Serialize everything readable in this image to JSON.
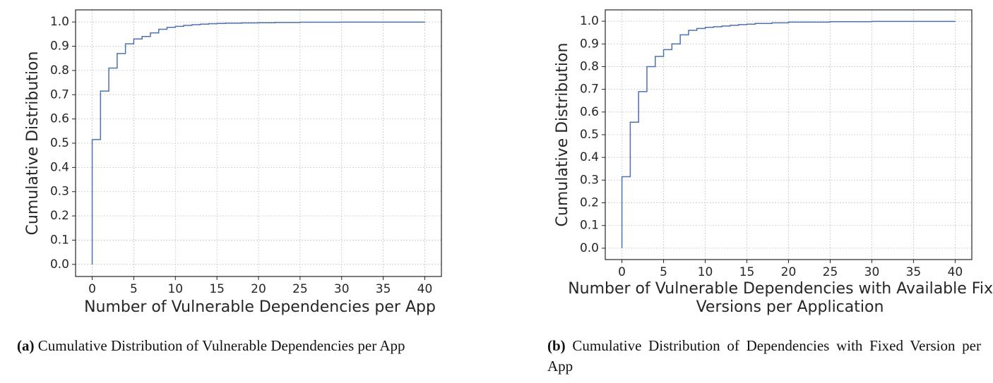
{
  "chart_data": [
    {
      "type": "step",
      "x_label": [
        "Number of Vulnerable Dependencies per App"
      ],
      "y_label": "Cumulative Distribution",
      "series": [
        {
          "color": "#4c72b0",
          "x": [
            0,
            0,
            1,
            2,
            3,
            4,
            5,
            6,
            7,
            8,
            9,
            10,
            11,
            12,
            13,
            14,
            15,
            16,
            18,
            20,
            22,
            25,
            30,
            40
          ],
          "values": [
            0,
            0.515,
            0.715,
            0.81,
            0.87,
            0.91,
            0.93,
            0.94,
            0.955,
            0.97,
            0.978,
            0.982,
            0.986,
            0.989,
            0.991,
            0.993,
            0.994,
            0.995,
            0.996,
            0.997,
            0.998,
            0.999,
            0.9995,
            1.0
          ]
        }
      ],
      "xlim": [
        -2,
        42
      ],
      "xticks": [
        0,
        5,
        10,
        15,
        20,
        25,
        30,
        35,
        40
      ],
      "ylim": [
        -0.05,
        1.05
      ],
      "yticks": [
        {
          "value": 0,
          "label": "0.0"
        },
        {
          "value": 0.1,
          "label": "0.1"
        },
        {
          "value": 0.2,
          "label": "0.2"
        },
        {
          "value": 0.3,
          "label": "0.3"
        },
        {
          "value": 0.4,
          "label": "0.4"
        },
        {
          "value": 0.5,
          "label": "0.5"
        },
        {
          "value": 0.6,
          "label": "0.6"
        },
        {
          "value": 0.7,
          "label": "0.7"
        },
        {
          "value": 0.8,
          "label": "0.8"
        },
        {
          "value": 0.9,
          "label": "0.9"
        },
        {
          "value": 1,
          "label": "1.0"
        }
      ],
      "grid": true,
      "caption": {
        "label": "(a)",
        "text": "Cumulative Distribution of Vulnerable Dependencies per App"
      }
    },
    {
      "type": "step",
      "x_label": [
        "Number of Vulnerable Dependencies with Available Fixed",
        "Versions per Application"
      ],
      "y_label": "Cumulative Distribution",
      "series": [
        {
          "color": "#4c72b0",
          "x": [
            0,
            0,
            1,
            2,
            3,
            4,
            5,
            6,
            7,
            8,
            9,
            10,
            11,
            12,
            13,
            14,
            15,
            16,
            18,
            20,
            25,
            30,
            40
          ],
          "values": [
            0,
            0.315,
            0.555,
            0.69,
            0.8,
            0.845,
            0.875,
            0.9,
            0.94,
            0.96,
            0.968,
            0.973,
            0.976,
            0.979,
            0.982,
            0.985,
            0.987,
            0.99,
            0.993,
            0.996,
            0.998,
            0.999,
            1.0
          ]
        }
      ],
      "xlim": [
        -2,
        42
      ],
      "xticks": [
        0,
        5,
        10,
        15,
        20,
        25,
        30,
        35,
        40
      ],
      "ylim": [
        -0.05,
        1.05
      ],
      "yticks": [
        {
          "value": 0,
          "label": "0.0"
        },
        {
          "value": 0.1,
          "label": "0.1"
        },
        {
          "value": 0.2,
          "label": "0.2"
        },
        {
          "value": 0.3,
          "label": "0.3"
        },
        {
          "value": 0.4,
          "label": "0.4"
        },
        {
          "value": 0.5,
          "label": "0.5"
        },
        {
          "value": 0.6,
          "label": "0.6"
        },
        {
          "value": 0.7,
          "label": "0.7"
        },
        {
          "value": 0.8,
          "label": "0.8"
        },
        {
          "value": 0.9,
          "label": "0.9"
        },
        {
          "value": 1,
          "label": "1.0"
        }
      ],
      "grid": true,
      "caption": {
        "label": "(b)",
        "text": "Cumulative Distribution of Dependencies with Fixed Version per App"
      }
    }
  ]
}
